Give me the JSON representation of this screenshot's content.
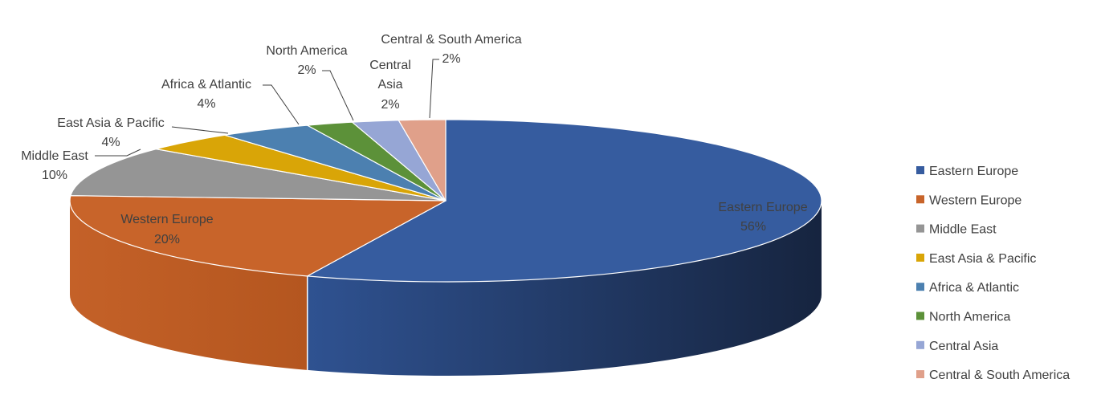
{
  "chart_data": {
    "type": "pie",
    "style": "3d",
    "title": "",
    "legend_position": "right",
    "slices": [
      {
        "name": "Eastern Europe",
        "value": 56,
        "label": "56%",
        "color": "#365C9F"
      },
      {
        "name": "Western Europe",
        "value": 20,
        "label": "20%",
        "color": "#C8642A"
      },
      {
        "name": "Middle East",
        "value": 10,
        "label": "10%",
        "color": "#959595"
      },
      {
        "name": "East Asia & Pacific",
        "value": 4,
        "label": "4%",
        "color": "#D9A507"
      },
      {
        "name": "Africa & Atlantic",
        "value": 4,
        "label": "4%",
        "color": "#4C80B0"
      },
      {
        "name": "North America",
        "value": 2,
        "label": "2%",
        "color": "#5C9139"
      },
      {
        "name": "Central Asia",
        "value": 2,
        "label": "2%",
        "color": "#96A6D5"
      },
      {
        "name": "Central & South America",
        "value": 2,
        "label": "2%",
        "color": "#E0A08A"
      }
    ]
  }
}
